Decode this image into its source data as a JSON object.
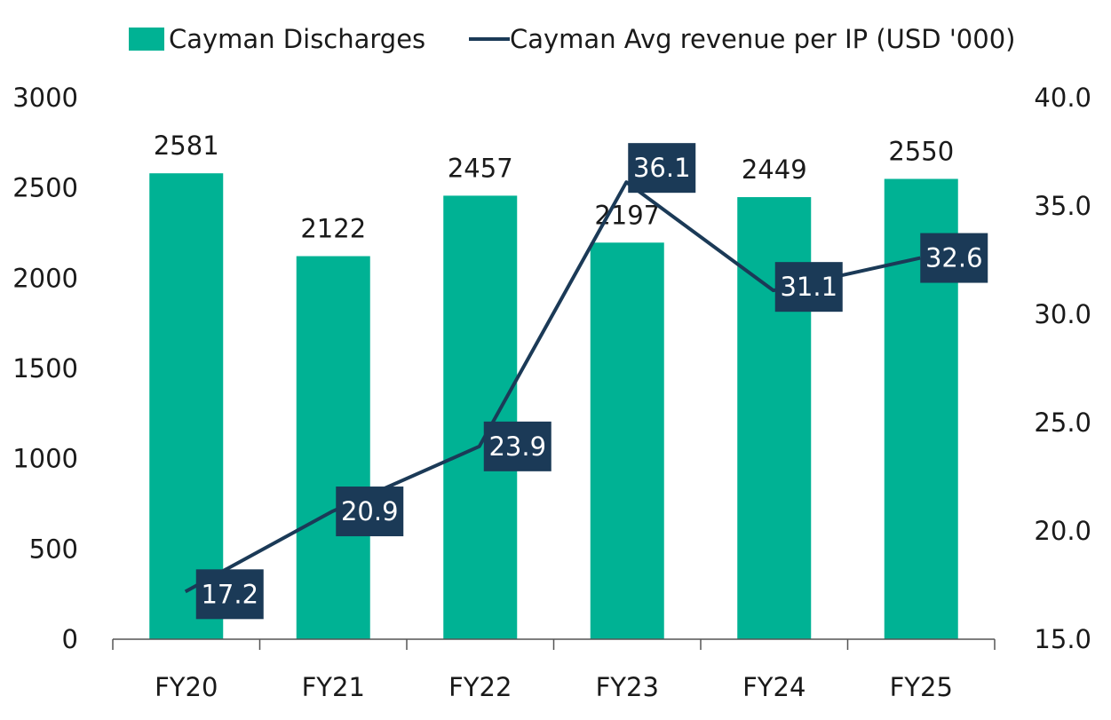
{
  "chart_data": {
    "type": "bar+line",
    "categories": [
      "FY20",
      "FY21",
      "FY22",
      "FY23",
      "FY24",
      "FY25"
    ],
    "series": [
      {
        "name": "Cayman Discharges",
        "type": "bar",
        "axis": "left",
        "color": "#00b294",
        "values": [
          2581,
          2122,
          2457,
          2197,
          2449,
          2550
        ]
      },
      {
        "name": "Cayman Avg revenue per IP (USD '000)",
        "type": "line",
        "axis": "right",
        "color": "#1b3a57",
        "values": [
          17.2,
          20.9,
          23.9,
          36.1,
          31.1,
          32.6
        ]
      }
    ],
    "y_left": {
      "min": 0,
      "max": 3000,
      "ticks": [
        "0",
        "500",
        "1000",
        "1500",
        "2000",
        "2500",
        "3000"
      ]
    },
    "y_right": {
      "min": 15.0,
      "max": 40.0,
      "ticks": [
        "15.0",
        "20.0",
        "25.0",
        "30.0",
        "35.0",
        "40.0"
      ]
    },
    "legend_position": "top",
    "grid": false,
    "bar_label_color": "#1a1a1a",
    "line_label_bg": "#1b3a57",
    "line_label_color": "#ffffff"
  }
}
